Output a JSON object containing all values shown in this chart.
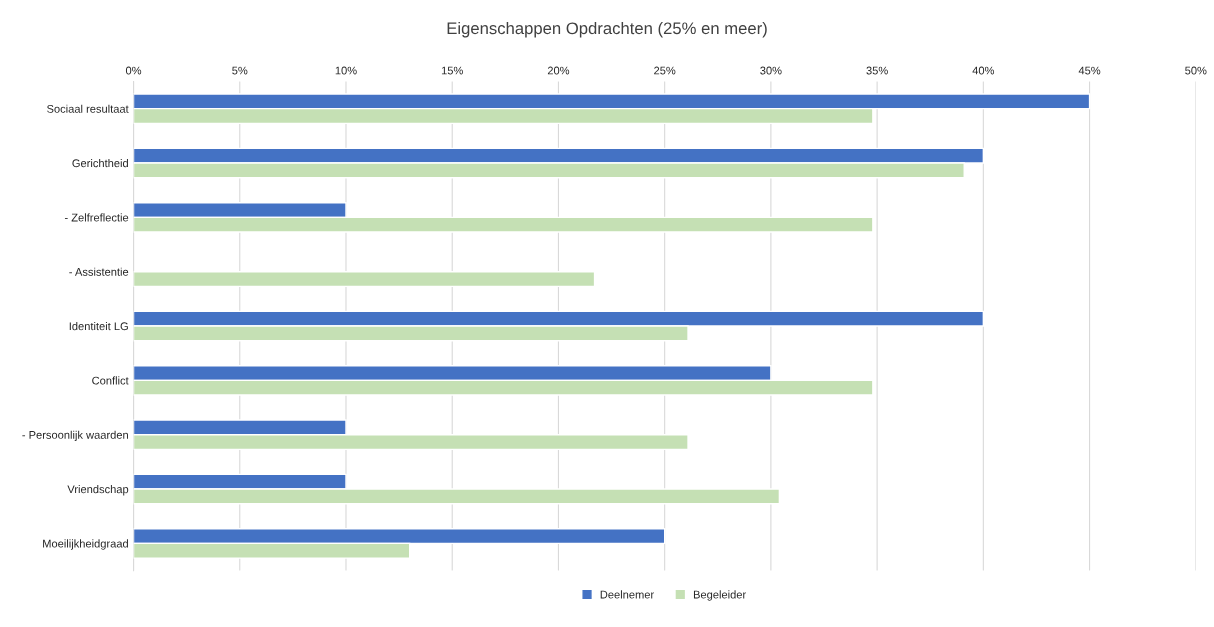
{
  "chart_data": {
    "type": "bar",
    "orientation": "horizontal",
    "title": "Eigenschappen Opdrachten (25% en meer)",
    "categories": [
      "Sociaal resultaat",
      "Gerichtheid",
      "- Zelfreflectie",
      "- Assistentie",
      "Identiteit LG",
      "Conflict",
      "- Persoonlijk waarden",
      "Vriendschap",
      "Moeilijkheidgraad"
    ],
    "series": [
      {
        "name": "Deelnemer",
        "color": "#4472c4",
        "values": [
          45,
          40,
          10,
          null,
          40,
          30,
          10,
          10,
          25
        ]
      },
      {
        "name": "Begeleider",
        "color": "#c5e0b4",
        "values": [
          34.8,
          39.1,
          34.8,
          21.7,
          26.1,
          34.8,
          26.1,
          30.4,
          13.0
        ]
      }
    ],
    "xlim": [
      0,
      50
    ],
    "xticks": [
      {
        "value": 0,
        "label": "0%"
      },
      {
        "value": 5,
        "label": "5%"
      },
      {
        "value": 10,
        "label": "10%"
      },
      {
        "value": 15,
        "label": "15%"
      },
      {
        "value": 20,
        "label": "20%"
      },
      {
        "value": 25,
        "label": "25%"
      },
      {
        "value": 30,
        "label": "30%"
      },
      {
        "value": 35,
        "label": "35%"
      },
      {
        "value": 40,
        "label": "40%"
      },
      {
        "value": 45,
        "label": "45%"
      },
      {
        "value": 50,
        "label": "50%"
      }
    ],
    "grid": "x",
    "legend": "bottom"
  }
}
